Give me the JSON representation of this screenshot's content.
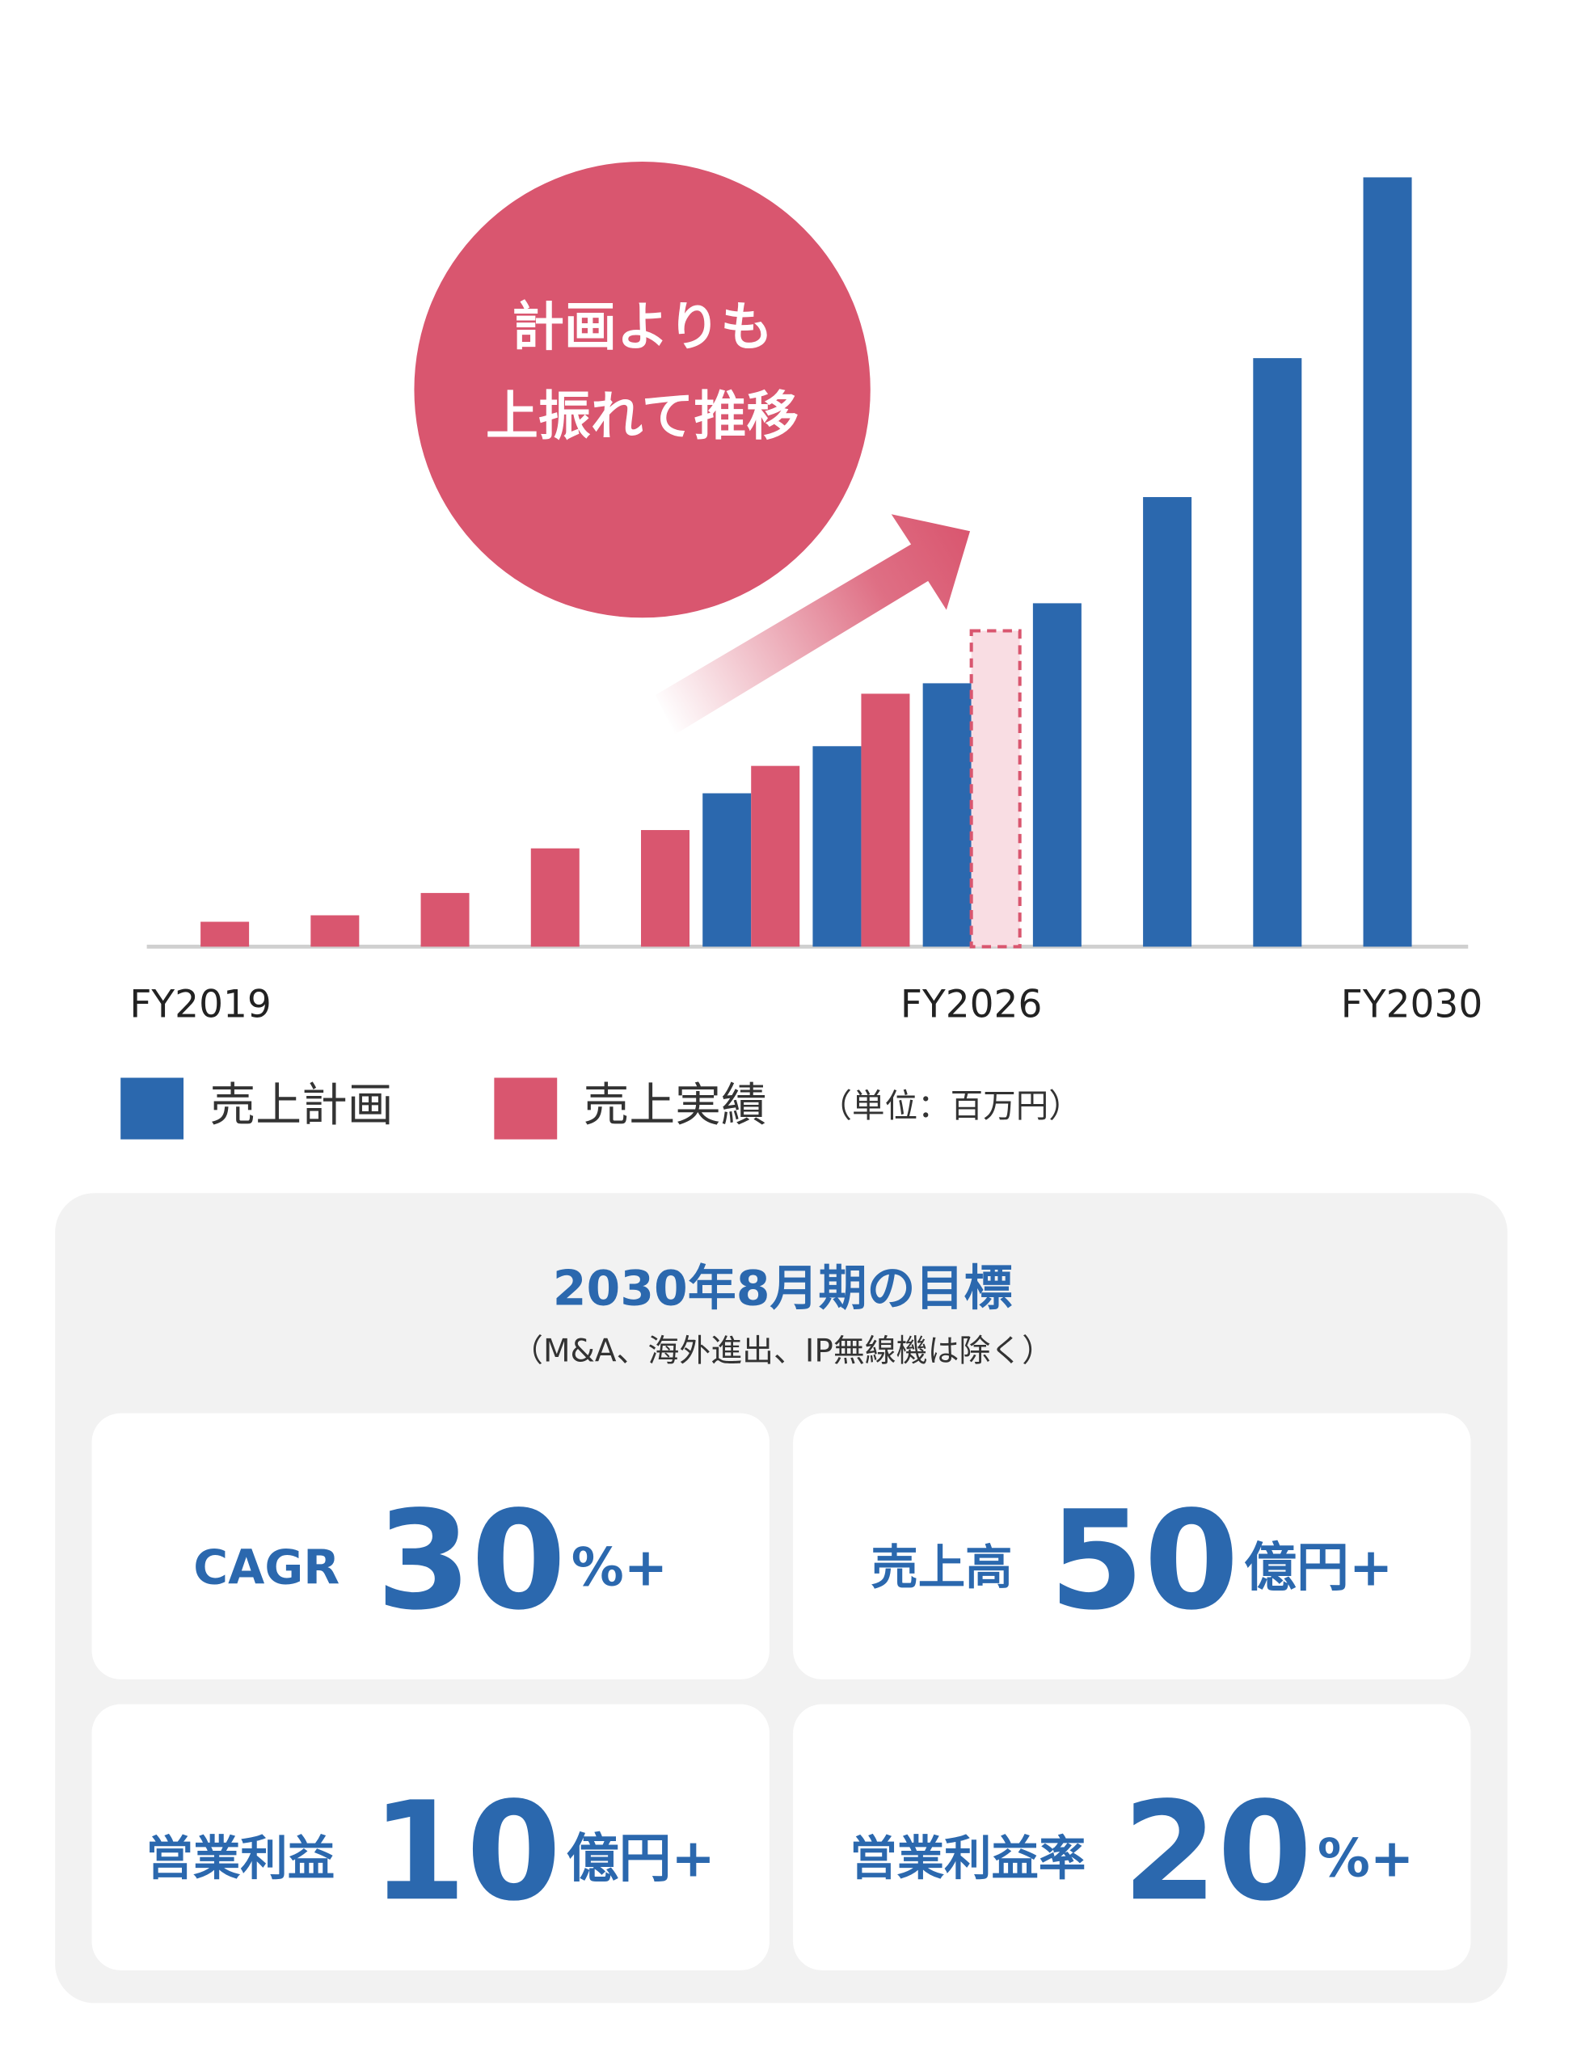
{
  "chart_data": {
    "type": "bar",
    "categories": [
      "FY2019",
      null,
      null,
      null,
      null,
      null,
      null,
      "FY2026",
      null,
      null,
      null,
      "FY2030"
    ],
    "series": [
      {
        "name": "売上計画",
        "color": "#2b68ae",
        "values": [
          null,
          null,
          null,
          null,
          null,
          997,
          1303,
          1712,
          2232,
          2922,
          3825,
          5000
        ]
      },
      {
        "name": "売上実績",
        "color": "#d9566f",
        "values": [
          162,
          204,
          349,
          639,
          758,
          1175,
          1644,
          null,
          null,
          null,
          null,
          null
        ]
      },
      {
        "color": "#f9dde3",
        "dashed": true,
        "values": [
          null,
          null,
          null,
          null,
          null,
          null,
          null,
          2053,
          null,
          null,
          null,
          null
        ]
      }
    ],
    "ylim": [
      0,
      5000
    ],
    "unit_note": "（単位：百万円）",
    "annotation": [
      "計画よりも",
      "上振れて推移"
    ]
  },
  "targets": {
    "title": "2030年8月期の目標",
    "note": "（M&A、海外進出、IP無線機は除く）",
    "items": [
      {
        "label": "CAGR",
        "value": 30,
        "unit": "%+"
      },
      {
        "label": "売上高",
        "value": 50,
        "unit": "億円+"
      },
      {
        "label": "営業利益",
        "value": 10,
        "unit": "億円+"
      },
      {
        "label": "営業利益率",
        "value": 20,
        "unit": "%+"
      }
    ]
  }
}
